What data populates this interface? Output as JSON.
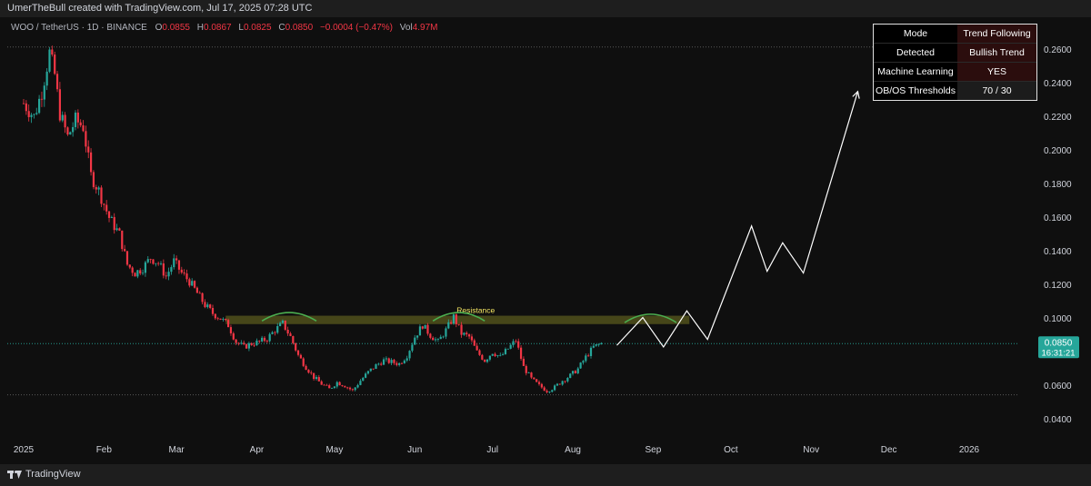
{
  "header": {
    "attribution": "UmerTheBull created with TradingView.com, Jul 17, 2025 07:28 UTC"
  },
  "legend": {
    "symbol": "WOO / TetherUS · 1D · BINANCE",
    "open_label": "O",
    "open": "0.0855",
    "high_label": "H",
    "high": "0.0867",
    "low_label": "L",
    "low": "0.0825",
    "close_label": "C",
    "close": "0.0850",
    "change": "−0.0004 (−0.47%)",
    "vol_label": "Vol",
    "vol": "4.97M"
  },
  "info_table": {
    "rows": [
      {
        "key": "Mode",
        "value": "Trend Following"
      },
      {
        "key": "Detected",
        "value": "Bullish Trend"
      },
      {
        "key": "Machine Learning",
        "value": "YES"
      },
      {
        "key": "OB/OS Thresholds",
        "value": "70 / 30"
      }
    ]
  },
  "price_tag": {
    "price": "0.0850",
    "countdown": "16:31:21"
  },
  "footer": {
    "brand": "TradingView"
  },
  "colors": {
    "up": "#26a69a",
    "down": "#f23645",
    "bg": "#0f0f0f",
    "resistance_zone": "#5a5a1e",
    "arc": "#4caf50",
    "projection": "#ffffff",
    "price_tag": "#26a69a",
    "resistance_label": "#f5e663"
  },
  "chart_data": {
    "type": "candlestick",
    "y_axis": {
      "range": [
        0.03,
        0.27
      ],
      "ticks": [
        "0.2600",
        "0.2400",
        "0.2200",
        "0.2000",
        "0.1800",
        "0.1600",
        "0.1400",
        "0.1200",
        "0.1000",
        "0.0800",
        "0.0600",
        "0.0400"
      ],
      "tick_values": [
        0.26,
        0.24,
        0.22,
        0.2,
        0.18,
        0.16,
        0.14,
        0.12,
        0.1,
        0.08,
        0.06,
        0.04
      ]
    },
    "x_axis": {
      "labels": [
        "2025",
        "Feb",
        "Mar",
        "Apr",
        "May",
        "Jun",
        "Jul",
        "Aug",
        "Sep",
        "Oct",
        "Nov",
        "Dec",
        "2026"
      ],
      "label_dates": [
        "2025-01-01",
        "2025-02-01",
        "2025-03-01",
        "2025-04-01",
        "2025-05-01",
        "2025-06-01",
        "2025-07-01",
        "2025-08-01",
        "2025-09-01",
        "2025-10-01",
        "2025-11-01",
        "2025-12-01",
        "2026-01-01"
      ]
    },
    "grid": false,
    "close_path": [
      [
        "2025-01-01",
        0.228
      ],
      [
        "2025-01-05",
        0.22
      ],
      [
        "2025-01-08",
        0.235
      ],
      [
        "2025-01-11",
        0.258
      ],
      [
        "2025-01-13",
        0.245
      ],
      [
        "2025-01-15",
        0.222
      ],
      [
        "2025-01-18",
        0.208
      ],
      [
        "2025-01-21",
        0.218
      ],
      [
        "2025-01-24",
        0.214
      ],
      [
        "2025-01-27",
        0.185
      ],
      [
        "2025-01-30",
        0.176
      ],
      [
        "2025-02-03",
        0.16
      ],
      [
        "2025-02-07",
        0.15
      ],
      [
        "2025-02-10",
        0.132
      ],
      [
        "2025-02-13",
        0.127
      ],
      [
        "2025-02-16",
        0.13
      ],
      [
        "2025-02-19",
        0.136
      ],
      [
        "2025-02-22",
        0.133
      ],
      [
        "2025-02-25",
        0.125
      ],
      [
        "2025-02-28",
        0.134
      ],
      [
        "2025-03-03",
        0.127
      ],
      [
        "2025-03-06",
        0.122
      ],
      [
        "2025-03-09",
        0.115
      ],
      [
        "2025-03-12",
        0.108
      ],
      [
        "2025-03-15",
        0.103
      ],
      [
        "2025-03-18",
        0.1
      ],
      [
        "2025-03-21",
        0.096
      ],
      [
        "2025-03-24",
        0.086
      ],
      [
        "2025-03-27",
        0.083
      ],
      [
        "2025-03-30",
        0.085
      ],
      [
        "2025-04-02",
        0.086
      ],
      [
        "2025-04-05",
        0.088
      ],
      [
        "2025-04-08",
        0.093
      ],
      [
        "2025-04-11",
        0.097
      ],
      [
        "2025-04-14",
        0.089
      ],
      [
        "2025-04-17",
        0.078
      ],
      [
        "2025-04-20",
        0.071
      ],
      [
        "2025-04-23",
        0.065
      ],
      [
        "2025-04-26",
        0.061
      ],
      [
        "2025-04-29",
        0.058
      ],
      [
        "2025-05-02",
        0.062
      ],
      [
        "2025-05-05",
        0.06
      ],
      [
        "2025-05-08",
        0.057
      ],
      [
        "2025-05-11",
        0.063
      ],
      [
        "2025-05-14",
        0.068
      ],
      [
        "2025-05-17",
        0.072
      ],
      [
        "2025-05-20",
        0.075
      ],
      [
        "2025-05-23",
        0.074
      ],
      [
        "2025-05-26",
        0.073
      ],
      [
        "2025-05-29",
        0.078
      ],
      [
        "2025-06-01",
        0.089
      ],
      [
        "2025-06-04",
        0.096
      ],
      [
        "2025-06-07",
        0.09
      ],
      [
        "2025-06-10",
        0.086
      ],
      [
        "2025-06-13",
        0.093
      ],
      [
        "2025-06-16",
        0.101
      ],
      [
        "2025-06-19",
        0.091
      ],
      [
        "2025-06-22",
        0.089
      ],
      [
        "2025-06-25",
        0.08
      ],
      [
        "2025-06-28",
        0.075
      ],
      [
        "2025-07-01",
        0.08
      ],
      [
        "2025-07-04",
        0.077
      ],
      [
        "2025-07-07",
        0.082
      ],
      [
        "2025-07-10",
        0.087
      ],
      [
        "2025-07-13",
        0.071
      ],
      [
        "2025-07-16",
        0.064
      ],
      [
        "2025-07-19",
        0.06
      ],
      [
        "2025-07-22",
        0.057
      ],
      [
        "2025-07-25",
        0.059
      ],
      [
        "2025-07-28",
        0.063
      ],
      [
        "2025-07-31",
        0.066
      ],
      [
        "2025-08-03",
        0.07
      ],
      [
        "2025-08-06",
        0.077
      ],
      [
        "2025-08-09",
        0.083
      ],
      [
        "2025-08-12",
        0.085
      ]
    ],
    "current_price": 0.085,
    "horizontal_lines": [
      0.2615,
      0.085,
      0.0545
    ],
    "resistance_zone": {
      "label": "Resistance",
      "y_range": [
        0.0966,
        0.1016
      ],
      "x_start": "2025-03-20",
      "x_end": "2025-09-15"
    },
    "arcs": [
      {
        "x_start": "2025-04-03",
        "x_end": "2025-04-24",
        "y_base": 0.0985,
        "y_peak": 0.1035
      },
      {
        "x_start": "2025-06-08",
        "x_end": "2025-06-28",
        "y_base": 0.0985,
        "y_peak": 0.1035
      },
      {
        "x_start": "2025-08-21",
        "x_end": "2025-09-10",
        "y_base": 0.0975,
        "y_peak": 0.1025
      }
    ],
    "projection_path": [
      [
        "2025-08-18",
        0.084
      ],
      [
        "2025-08-28",
        0.1005
      ],
      [
        "2025-09-05",
        0.083
      ],
      [
        "2025-09-14",
        0.1045
      ],
      [
        "2025-09-22",
        0.0875
      ],
      [
        "2025-10-09",
        0.155
      ],
      [
        "2025-10-15",
        0.128
      ],
      [
        "2025-10-21",
        0.145
      ],
      [
        "2025-10-29",
        0.127
      ],
      [
        "2025-11-19",
        0.235
      ]
    ]
  }
}
